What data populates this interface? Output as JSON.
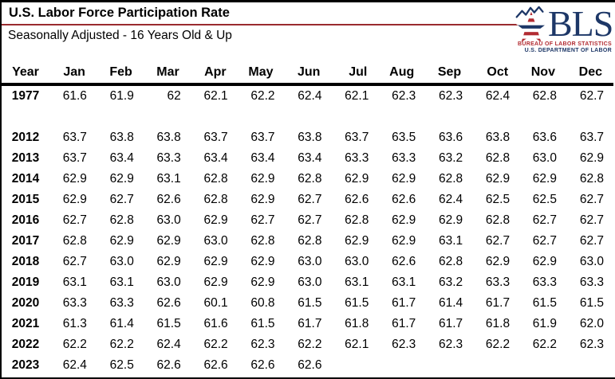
{
  "header": {
    "title": "U.S. Labor Force Participation Rate",
    "subtitle": "Seasonally Adjusted - 16 Years Old & Up"
  },
  "logo": {
    "acronym": "BLS",
    "bureau_line": "BUREAU OF LABOR STATISTICS",
    "department_line": "U.S. DEPARTMENT OF LABOR"
  },
  "colors": {
    "title_rule_red": "#9a2b2f",
    "logo_navy": "#1d3767",
    "logo_red": "#b22b31",
    "border_black": "#000000",
    "background": "#ffffff"
  },
  "chart_data": {
    "type": "table",
    "title": "U.S. Labor Force Participation Rate",
    "subtitle": "Seasonally Adjusted - 16 Years Old & Up",
    "unit": "percent",
    "columns": [
      "Year",
      "Jan",
      "Feb",
      "Mar",
      "Apr",
      "May",
      "Jun",
      "Jul",
      "Aug",
      "Sep",
      "Oct",
      "Nov",
      "Dec"
    ],
    "rows": [
      {
        "year": "1977",
        "values": [
          "61.6",
          "61.9",
          "62",
          "62.1",
          "62.2",
          "62.4",
          "62.1",
          "62.3",
          "62.3",
          "62.4",
          "62.8",
          "62.7"
        ],
        "gap_after": true
      },
      {
        "year": "2012",
        "values": [
          "63.7",
          "63.8",
          "63.8",
          "63.7",
          "63.7",
          "63.8",
          "63.7",
          "63.5",
          "63.6",
          "63.8",
          "63.6",
          "63.7"
        ]
      },
      {
        "year": "2013",
        "values": [
          "63.7",
          "63.4",
          "63.3",
          "63.4",
          "63.4",
          "63.4",
          "63.3",
          "63.3",
          "63.2",
          "62.8",
          "63.0",
          "62.9"
        ]
      },
      {
        "year": "2014",
        "values": [
          "62.9",
          "62.9",
          "63.1",
          "62.8",
          "62.9",
          "62.8",
          "62.9",
          "62.9",
          "62.8",
          "62.9",
          "62.9",
          "62.8"
        ]
      },
      {
        "year": "2015",
        "values": [
          "62.9",
          "62.7",
          "62.6",
          "62.8",
          "62.9",
          "62.7",
          "62.6",
          "62.6",
          "62.4",
          "62.5",
          "62.5",
          "62.7"
        ]
      },
      {
        "year": "2016",
        "values": [
          "62.7",
          "62.8",
          "63.0",
          "62.9",
          "62.7",
          "62.7",
          "62.8",
          "62.9",
          "62.9",
          "62.8",
          "62.7",
          "62.7"
        ]
      },
      {
        "year": "2017",
        "values": [
          "62.8",
          "62.9",
          "62.9",
          "63.0",
          "62.8",
          "62.8",
          "62.9",
          "62.9",
          "63.1",
          "62.7",
          "62.7",
          "62.7"
        ]
      },
      {
        "year": "2018",
        "values": [
          "62.7",
          "63.0",
          "62.9",
          "62.9",
          "62.9",
          "63.0",
          "63.0",
          "62.6",
          "62.8",
          "62.9",
          "62.9",
          "63.0"
        ]
      },
      {
        "year": "2019",
        "values": [
          "63.1",
          "63.1",
          "63.0",
          "62.9",
          "62.9",
          "63.0",
          "63.1",
          "63.1",
          "63.2",
          "63.3",
          "63.3",
          "63.3"
        ]
      },
      {
        "year": "2020",
        "values": [
          "63.3",
          "63.3",
          "62.6",
          "60.1",
          "60.8",
          "61.5",
          "61.5",
          "61.7",
          "61.4",
          "61.7",
          "61.5",
          "61.5"
        ]
      },
      {
        "year": "2021",
        "values": [
          "61.3",
          "61.4",
          "61.5",
          "61.6",
          "61.5",
          "61.7",
          "61.8",
          "61.7",
          "61.7",
          "61.8",
          "61.9",
          "62.0"
        ]
      },
      {
        "year": "2022",
        "values": [
          "62.2",
          "62.2",
          "62.4",
          "62.2",
          "62.3",
          "62.2",
          "62.1",
          "62.3",
          "62.3",
          "62.2",
          "62.2",
          "62.3"
        ]
      },
      {
        "year": "2023",
        "values": [
          "62.4",
          "62.5",
          "62.6",
          "62.6",
          "62.6",
          "62.6",
          "",
          "",
          "",
          "",
          "",
          ""
        ]
      }
    ]
  }
}
